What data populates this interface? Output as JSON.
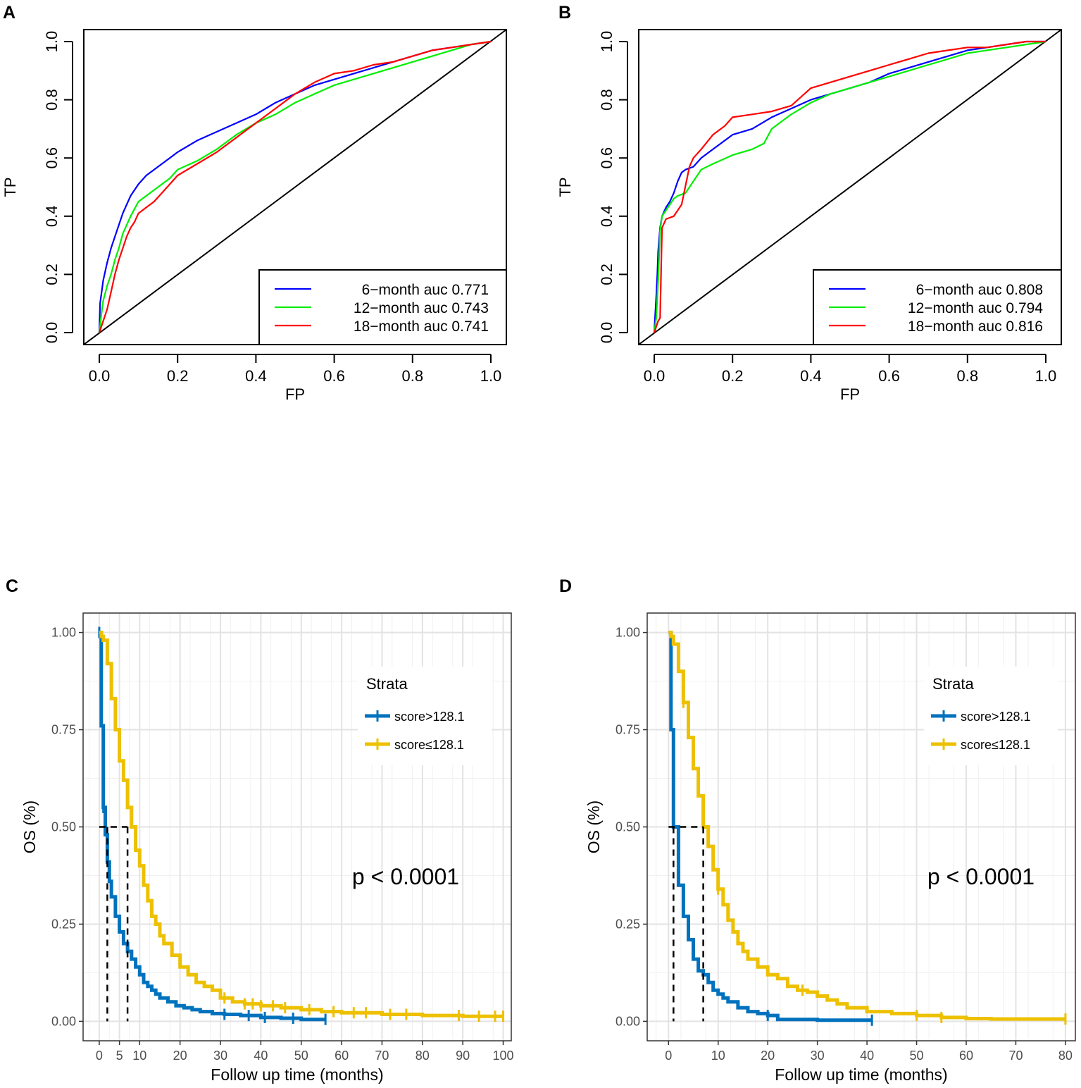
{
  "chart_data": [
    {
      "panel": "A",
      "type": "line",
      "subtype": "roc",
      "xlabel": "FP",
      "ylabel": "TP",
      "xlim": [
        0,
        1
      ],
      "ylim": [
        0,
        1
      ],
      "xticks": [
        "0.0",
        "0.2",
        "0.4",
        "0.6",
        "0.8",
        "1.0"
      ],
      "yticks": [
        "0.0",
        "0.2",
        "0.4",
        "0.6",
        "0.8",
        "1.0"
      ],
      "diagonal": true,
      "legend_position": "bottom-right",
      "series": [
        {
          "name": "6−month auc 0.771",
          "color": "#0000ff",
          "x": [
            0,
            0.002,
            0.01,
            0.02,
            0.03,
            0.04,
            0.05,
            0.06,
            0.07,
            0.08,
            0.1,
            0.12,
            0.15,
            0.18,
            0.2,
            0.25,
            0.3,
            0.35,
            0.4,
            0.45,
            0.5,
            0.55,
            0.6,
            0.65,
            0.7,
            0.75,
            0.8,
            0.85,
            0.9,
            0.95,
            1.0
          ],
          "y": [
            0,
            0.1,
            0.18,
            0.24,
            0.29,
            0.33,
            0.37,
            0.41,
            0.44,
            0.47,
            0.51,
            0.54,
            0.57,
            0.6,
            0.62,
            0.66,
            0.69,
            0.72,
            0.75,
            0.79,
            0.82,
            0.85,
            0.87,
            0.89,
            0.91,
            0.93,
            0.95,
            0.97,
            0.98,
            0.99,
            1.0
          ]
        },
        {
          "name": "12−month auc 0.743",
          "color": "#00ee00",
          "x": [
            0,
            0.005,
            0.01,
            0.02,
            0.03,
            0.04,
            0.05,
            0.06,
            0.08,
            0.1,
            0.12,
            0.15,
            0.18,
            0.2,
            0.25,
            0.3,
            0.35,
            0.4,
            0.45,
            0.5,
            0.55,
            0.6,
            0.65,
            0.7,
            0.75,
            0.8,
            0.85,
            0.9,
            0.95,
            1.0
          ],
          "y": [
            0,
            0.06,
            0.11,
            0.16,
            0.2,
            0.25,
            0.29,
            0.34,
            0.4,
            0.45,
            0.47,
            0.5,
            0.53,
            0.56,
            0.59,
            0.63,
            0.68,
            0.72,
            0.75,
            0.79,
            0.82,
            0.85,
            0.87,
            0.89,
            0.91,
            0.93,
            0.95,
            0.97,
            0.99,
            1.0
          ]
        },
        {
          "name": "18−month auc 0.741",
          "color": "#ff0000",
          "x": [
            0,
            0.01,
            0.02,
            0.03,
            0.04,
            0.05,
            0.06,
            0.07,
            0.08,
            0.09,
            0.1,
            0.12,
            0.14,
            0.16,
            0.18,
            0.2,
            0.25,
            0.3,
            0.35,
            0.4,
            0.45,
            0.5,
            0.55,
            0.6,
            0.65,
            0.7,
            0.75,
            0.8,
            0.85,
            0.9,
            0.95,
            1.0
          ],
          "y": [
            0,
            0.04,
            0.08,
            0.14,
            0.2,
            0.25,
            0.29,
            0.33,
            0.36,
            0.38,
            0.41,
            0.43,
            0.45,
            0.48,
            0.51,
            0.54,
            0.58,
            0.62,
            0.67,
            0.72,
            0.77,
            0.82,
            0.86,
            0.89,
            0.9,
            0.92,
            0.93,
            0.95,
            0.97,
            0.98,
            0.99,
            1.0
          ]
        }
      ]
    },
    {
      "panel": "B",
      "type": "line",
      "subtype": "roc",
      "xlabel": "FP",
      "ylabel": "TP",
      "xlim": [
        0,
        1
      ],
      "ylim": [
        0,
        1
      ],
      "xticks": [
        "0.0",
        "0.2",
        "0.4",
        "0.6",
        "0.8",
        "1.0"
      ],
      "yticks": [
        "0.0",
        "0.2",
        "0.4",
        "0.6",
        "0.8",
        "1.0"
      ],
      "diagonal": true,
      "legend_position": "bottom-right",
      "series": [
        {
          "name": "6−month auc 0.808",
          "color": "#0000ff",
          "x": [
            0,
            0.002,
            0.005,
            0.008,
            0.01,
            0.015,
            0.02,
            0.03,
            0.04,
            0.05,
            0.06,
            0.07,
            0.08,
            0.1,
            0.12,
            0.15,
            0.2,
            0.25,
            0.3,
            0.35,
            0.4,
            0.45,
            0.5,
            0.55,
            0.6,
            0.65,
            0.7,
            0.75,
            0.8,
            0.85,
            0.9,
            0.95,
            1.0
          ],
          "y": [
            0,
            0.05,
            0.12,
            0.2,
            0.28,
            0.36,
            0.4,
            0.43,
            0.45,
            0.48,
            0.52,
            0.55,
            0.56,
            0.57,
            0.6,
            0.63,
            0.68,
            0.7,
            0.74,
            0.77,
            0.8,
            0.82,
            0.84,
            0.86,
            0.89,
            0.91,
            0.93,
            0.95,
            0.97,
            0.98,
            0.99,
            1.0,
            1.0
          ]
        },
        {
          "name": "12−month auc 0.794",
          "color": "#00ee00",
          "x": [
            0,
            0.005,
            0.01,
            0.015,
            0.02,
            0.03,
            0.04,
            0.05,
            0.06,
            0.08,
            0.1,
            0.12,
            0.15,
            0.2,
            0.25,
            0.28,
            0.3,
            0.35,
            0.4,
            0.45,
            0.5,
            0.55,
            0.6,
            0.65,
            0.7,
            0.75,
            0.8,
            0.85,
            0.9,
            0.95,
            1.0
          ],
          "y": [
            0,
            0.05,
            0.18,
            0.35,
            0.4,
            0.42,
            0.44,
            0.46,
            0.47,
            0.48,
            0.52,
            0.56,
            0.58,
            0.61,
            0.63,
            0.65,
            0.7,
            0.75,
            0.79,
            0.82,
            0.84,
            0.86,
            0.88,
            0.9,
            0.92,
            0.94,
            0.96,
            0.97,
            0.98,
            0.99,
            1.0
          ]
        },
        {
          "name": "18−month auc 0.816",
          "color": "#ff0000",
          "x": [
            0,
            0.01,
            0.015,
            0.02,
            0.03,
            0.05,
            0.07,
            0.09,
            0.1,
            0.12,
            0.15,
            0.18,
            0.2,
            0.25,
            0.3,
            0.35,
            0.4,
            0.45,
            0.5,
            0.55,
            0.6,
            0.65,
            0.7,
            0.75,
            0.8,
            0.85,
            0.9,
            0.95,
            1.0
          ],
          "y": [
            0,
            0.04,
            0.05,
            0.36,
            0.39,
            0.4,
            0.44,
            0.57,
            0.6,
            0.63,
            0.68,
            0.71,
            0.74,
            0.75,
            0.76,
            0.78,
            0.84,
            0.86,
            0.88,
            0.9,
            0.92,
            0.94,
            0.96,
            0.97,
            0.98,
            0.98,
            0.99,
            1.0,
            1.0
          ]
        }
      ]
    },
    {
      "panel": "C",
      "type": "line",
      "subtype": "kaplan-meier",
      "xlabel": "Follow up time (months)",
      "ylabel": "OS (%)",
      "xlim": [
        -4,
        102
      ],
      "ylim": [
        -0.05,
        1.05
      ],
      "xticks": [
        0,
        5,
        10,
        20,
        30,
        40,
        50,
        60,
        70,
        80,
        90,
        100
      ],
      "xtick_labels": [
        "0",
        "5",
        "10",
        "20",
        "30",
        "40",
        "50",
        "60",
        "70",
        "80",
        "90",
        "100"
      ],
      "yticks": [
        0,
        0.25,
        0.5,
        0.75,
        1.0
      ],
      "ytick_labels": [
        "0.00",
        "0.25",
        "0.50",
        "0.75",
        "1.00"
      ],
      "legend_title": "Strata",
      "legend_position": "top-right",
      "annotation": "p < 0.0001",
      "median_lines": [
        {
          "x": 2,
          "y": 0.5
        },
        {
          "x": 7,
          "y": 0.5
        }
      ],
      "series": [
        {
          "name": "score>128.1",
          "color": "#0072bd",
          "x": [
            0,
            0.5,
            1.0,
            1.5,
            2.0,
            2.5,
            3.0,
            4.0,
            5.0,
            6.0,
            7.0,
            8.0,
            9.0,
            10.0,
            11.0,
            12.0,
            13.0,
            14.0,
            15.0,
            17.0,
            19.0,
            21.0,
            23.0,
            25.0,
            28.0,
            31.0,
            35.0,
            40.0,
            45.0,
            50.0,
            56.0
          ],
          "y": [
            1.0,
            0.76,
            0.55,
            0.48,
            0.41,
            0.36,
            0.32,
            0.27,
            0.23,
            0.2,
            0.18,
            0.16,
            0.14,
            0.12,
            0.1,
            0.09,
            0.08,
            0.07,
            0.06,
            0.05,
            0.04,
            0.035,
            0.03,
            0.025,
            0.02,
            0.018,
            0.015,
            0.01,
            0.008,
            0.005,
            0.005
          ],
          "censor_x": [
            0,
            1,
            31,
            37,
            41,
            48,
            56
          ]
        },
        {
          "name": "score≤128.1",
          "color": "#edc000",
          "x": [
            0,
            0.5,
            1.0,
            2.0,
            3.0,
            4.0,
            5.0,
            6.0,
            7.0,
            8.0,
            9.0,
            10.0,
            11.0,
            12.0,
            13.0,
            14.0,
            15.0,
            16.0,
            18.0,
            20.0,
            22.0,
            24.0,
            26.0,
            28.0,
            30.0,
            33.0,
            36.0,
            40.0,
            45.0,
            50.0,
            55.0,
            60.0,
            70.0,
            80.0,
            90.0,
            100.0
          ],
          "y": [
            1.0,
            0.99,
            0.98,
            0.92,
            0.83,
            0.75,
            0.67,
            0.62,
            0.55,
            0.5,
            0.44,
            0.4,
            0.35,
            0.31,
            0.27,
            0.25,
            0.22,
            0.2,
            0.17,
            0.14,
            0.12,
            0.1,
            0.09,
            0.08,
            0.06,
            0.05,
            0.045,
            0.04,
            0.035,
            0.03,
            0.025,
            0.022,
            0.018,
            0.015,
            0.013,
            0.013
          ],
          "censor_x": [
            31,
            36,
            38,
            40,
            43,
            46,
            52,
            58,
            63,
            66,
            72,
            76,
            89,
            94,
            98,
            100
          ]
        }
      ]
    },
    {
      "panel": "D",
      "type": "line",
      "subtype": "kaplan-meier",
      "xlabel": "Follow up time (months)",
      "ylabel": "OS (%)",
      "xlim": [
        -4.3,
        82
      ],
      "ylim": [
        -0.05,
        1.05
      ],
      "xticks": [
        0,
        10,
        20,
        30,
        40,
        50,
        60,
        70,
        80
      ],
      "xtick_labels": [
        "0",
        "10",
        "20",
        "30",
        "40",
        "50",
        "60",
        "70",
        "80"
      ],
      "yticks": [
        0,
        0.25,
        0.5,
        0.75,
        1.0
      ],
      "ytick_labels": [
        "0.00",
        "0.25",
        "0.50",
        "0.75",
        "1.00"
      ],
      "legend_title": "Strata",
      "legend_position": "top-right",
      "annotation": "p < 0.0001",
      "median_lines": [
        {
          "x": 1,
          "y": 0.5
        },
        {
          "x": 7,
          "y": 0.5
        }
      ],
      "series": [
        {
          "name": "score>128.1",
          "color": "#0072bd",
          "x": [
            0,
            0.5,
            1.0,
            2.0,
            3.0,
            4.0,
            5.0,
            6.0,
            7.0,
            8.0,
            9.0,
            10.0,
            11.0,
            12.0,
            14.0,
            16.0,
            18.0,
            20.0,
            22.0,
            25.0,
            30.0,
            35.0,
            41.0
          ],
          "y": [
            1.0,
            0.75,
            0.5,
            0.35,
            0.27,
            0.21,
            0.16,
            0.13,
            0.12,
            0.1,
            0.08,
            0.07,
            0.06,
            0.05,
            0.035,
            0.025,
            0.02,
            0.015,
            0.005,
            0.005,
            0.003,
            0.003,
            0.003
          ],
          "censor_x": [
            20,
            41
          ]
        },
        {
          "name": "score≤128.1",
          "color": "#edc000",
          "x": [
            0,
            0.5,
            1.0,
            2.0,
            3.0,
            4.0,
            5.0,
            6.0,
            7.0,
            8.0,
            9.0,
            10.0,
            11.0,
            12.0,
            13.0,
            14.0,
            15.0,
            16.0,
            18.0,
            20.0,
            22.0,
            24.0,
            26.0,
            28.0,
            30.0,
            32.0,
            34.0,
            36.0,
            40.0,
            45.0,
            50.0,
            55.0,
            60.0,
            65.0,
            70.0,
            80.0
          ],
          "y": [
            1.0,
            0.99,
            0.97,
            0.9,
            0.82,
            0.73,
            0.65,
            0.58,
            0.5,
            0.45,
            0.39,
            0.34,
            0.3,
            0.26,
            0.23,
            0.2,
            0.18,
            0.16,
            0.14,
            0.12,
            0.11,
            0.09,
            0.08,
            0.075,
            0.065,
            0.055,
            0.045,
            0.035,
            0.025,
            0.02,
            0.015,
            0.01,
            0.007,
            0.006,
            0.006,
            0.006
          ],
          "censor_x": [
            3,
            10,
            27,
            50,
            55,
            80
          ]
        }
      ]
    }
  ]
}
